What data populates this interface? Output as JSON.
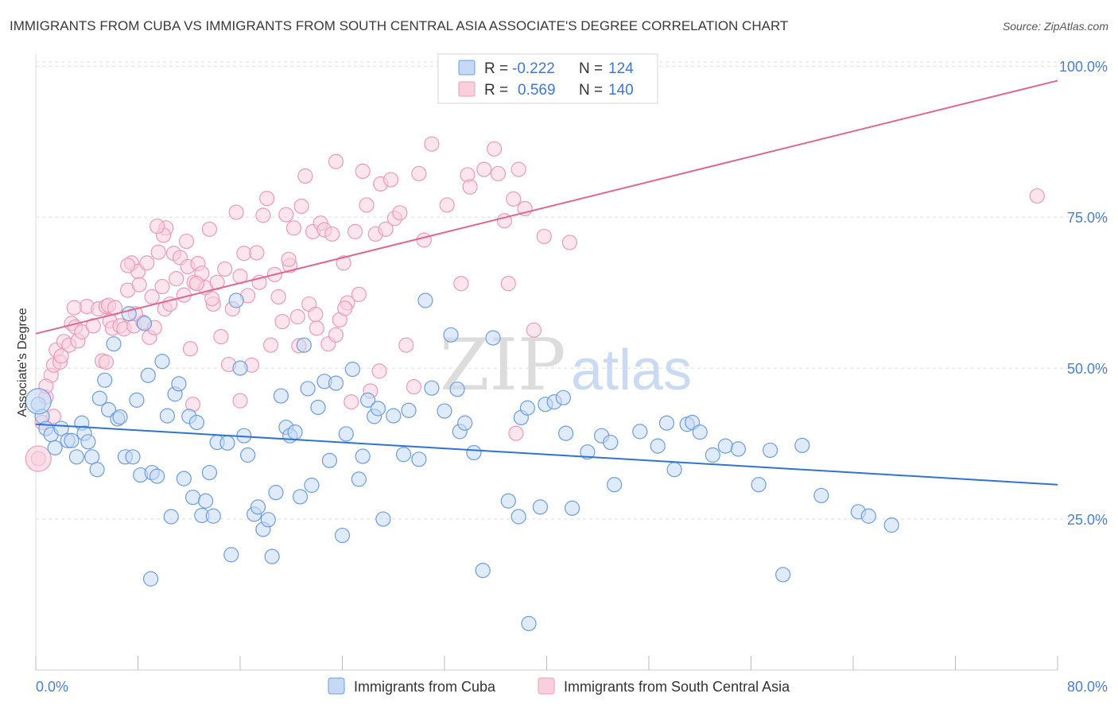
{
  "title": "IMMIGRANTS FROM CUBA VS IMMIGRANTS FROM SOUTH CENTRAL ASIA ASSOCIATE'S DEGREE CORRELATION CHART",
  "source": "Source: ZipAtlas.com",
  "watermark": {
    "zip": "ZIP",
    "atlas": "atlas"
  },
  "legend": {
    "r_label": "R =",
    "n_label": "N =",
    "rows": [
      {
        "r": "-0.222",
        "n": "124"
      },
      {
        "r": "0.569",
        "n": "140"
      }
    ]
  },
  "colors": {
    "cuba_fill": "#c5d8f5",
    "cuba_stroke": "#6c9de0",
    "cuba_line": "#2f74d0",
    "sca_fill": "#f9cfdc",
    "sca_stroke": "#ee9ab6",
    "sca_line": "#e06690",
    "tick_text": "#4a7fd0",
    "grid": "#dddddd"
  },
  "chart_data": {
    "type": "scatter",
    "title": "IMMIGRANTS FROM CUBA VS IMMIGRANTS FROM SOUTH CENTRAL ASIA ASSOCIATE'S DEGREE CORRELATION CHART",
    "xlabel": "",
    "ylabel": "Associate's Degree",
    "xlim": [
      0,
      80
    ],
    "ylim": [
      0,
      102
    ],
    "x_tick_labels": [
      "0.0%",
      "80.0%"
    ],
    "y_ticks": [
      25,
      50,
      75,
      100
    ],
    "y_tick_labels": [
      "25.0%",
      "50.0%",
      "75.0%",
      "100.0%"
    ],
    "grid": true,
    "legend_position": "top-center",
    "series": [
      {
        "name": "Immigrants from Cuba",
        "r": -0.222,
        "n": 124,
        "trend": {
          "x": [
            0,
            80
          ],
          "y": [
            40.7,
            30.7
          ]
        },
        "points": [
          [
            0.2,
            44.0
          ],
          [
            0.5,
            42.0
          ],
          [
            0.8,
            40.0
          ],
          [
            1.2,
            39.0
          ],
          [
            1.5,
            36.8
          ],
          [
            2.0,
            40.0
          ],
          [
            2.5,
            38.0
          ],
          [
            2.8,
            38.0
          ],
          [
            3.2,
            35.3
          ],
          [
            3.6,
            40.9
          ],
          [
            3.8,
            39.2
          ],
          [
            4.1,
            37.8
          ],
          [
            4.4,
            35.3
          ],
          [
            4.8,
            33.2
          ],
          [
            5.0,
            45.0
          ],
          [
            5.4,
            48.0
          ],
          [
            5.7,
            43.1
          ],
          [
            6.1,
            54.0
          ],
          [
            6.4,
            41.6
          ],
          [
            6.6,
            41.9
          ],
          [
            7.0,
            35.3
          ],
          [
            7.3,
            59.0
          ],
          [
            7.6,
            35.3
          ],
          [
            7.9,
            44.7
          ],
          [
            8.2,
            32.3
          ],
          [
            8.5,
            57.4
          ],
          [
            8.8,
            48.8
          ],
          [
            9.1,
            32.7
          ],
          [
            9.5,
            32.1
          ],
          [
            9.9,
            51.1
          ],
          [
            10.3,
            42.1
          ],
          [
            10.6,
            25.4
          ],
          [
            10.9,
            45.7
          ],
          [
            11.2,
            47.4
          ],
          [
            11.6,
            31.7
          ],
          [
            12.0,
            42.0
          ],
          [
            12.3,
            28.6
          ],
          [
            12.6,
            41.0
          ],
          [
            13.0,
            25.6
          ],
          [
            13.3,
            28.0
          ],
          [
            13.6,
            32.7
          ],
          [
            13.9,
            25.5
          ],
          [
            14.2,
            37.7
          ],
          [
            15.0,
            37.6
          ],
          [
            15.3,
            19.1
          ],
          [
            15.7,
            61.2
          ],
          [
            16.0,
            50.0
          ],
          [
            16.3,
            38.8
          ],
          [
            16.6,
            35.6
          ],
          [
            17.1,
            25.8
          ],
          [
            17.4,
            27.0
          ],
          [
            17.8,
            23.3
          ],
          [
            18.2,
            24.9
          ],
          [
            18.5,
            18.8
          ],
          [
            18.8,
            29.4
          ],
          [
            19.2,
            45.4
          ],
          [
            19.6,
            40.2
          ],
          [
            19.9,
            38.8
          ],
          [
            20.3,
            39.4
          ],
          [
            20.7,
            28.7
          ],
          [
            21.0,
            53.8
          ],
          [
            21.3,
            46.6
          ],
          [
            21.6,
            30.6
          ],
          [
            22.1,
            43.5
          ],
          [
            22.6,
            47.8
          ],
          [
            23.0,
            34.7
          ],
          [
            23.5,
            47.5
          ],
          [
            24.0,
            22.3
          ],
          [
            24.3,
            39.1
          ],
          [
            24.8,
            49.8
          ],
          [
            25.3,
            31.6
          ],
          [
            25.6,
            35.4
          ],
          [
            26.0,
            44.7
          ],
          [
            26.5,
            42.0
          ],
          [
            27.2,
            25.0
          ],
          [
            28.0,
            42.1
          ],
          [
            28.8,
            35.7
          ],
          [
            29.2,
            43.0
          ],
          [
            30.0,
            34.9
          ],
          [
            30.5,
            61.2
          ],
          [
            31.0,
            46.7
          ],
          [
            32.0,
            42.9
          ],
          [
            32.5,
            55.5
          ],
          [
            33.0,
            46.5
          ],
          [
            33.2,
            39.5
          ],
          [
            33.6,
            40.9
          ],
          [
            34.3,
            36.0
          ],
          [
            35.0,
            16.5
          ],
          [
            35.8,
            55.0
          ],
          [
            37.0,
            28.0
          ],
          [
            37.8,
            25.4
          ],
          [
            38.0,
            41.8
          ],
          [
            38.5,
            43.4
          ],
          [
            39.5,
            27.0
          ],
          [
            39.9,
            44.0
          ],
          [
            40.6,
            44.4
          ],
          [
            41.3,
            45.1
          ],
          [
            41.5,
            39.2
          ],
          [
            42.0,
            26.8
          ],
          [
            43.2,
            36.1
          ],
          [
            44.3,
            38.8
          ],
          [
            45.0,
            37.7
          ],
          [
            45.3,
            30.7
          ],
          [
            47.3,
            39.5
          ],
          [
            48.7,
            37.1
          ],
          [
            49.4,
            40.9
          ],
          [
            50.0,
            33.2
          ],
          [
            51.0,
            40.7
          ],
          [
            51.4,
            41.0
          ],
          [
            52.0,
            39.4
          ],
          [
            53.0,
            35.6
          ],
          [
            54.0,
            37.1
          ],
          [
            55.0,
            36.6
          ],
          [
            56.6,
            30.7
          ],
          [
            57.5,
            36.4
          ],
          [
            58.5,
            15.8
          ],
          [
            60.0,
            37.2
          ],
          [
            61.5,
            28.9
          ],
          [
            64.4,
            26.2
          ],
          [
            65.2,
            25.5
          ],
          [
            67.0,
            24.0
          ],
          [
            38.6,
            7.7
          ],
          [
            9.0,
            15.1
          ],
          [
            26.8,
            43.3
          ]
        ]
      },
      {
        "name": "Immigrants from South Central Asia",
        "r": 0.569,
        "n": 140,
        "trend": {
          "x": [
            0,
            80
          ],
          "y": [
            55.7,
            97.6
          ]
        },
        "points": [
          [
            0.2,
            35.0
          ],
          [
            0.5,
            41.0
          ],
          [
            0.8,
            45.2
          ],
          [
            1.2,
            48.8
          ],
          [
            1.4,
            50.5
          ],
          [
            1.6,
            53.0
          ],
          [
            1.9,
            51.0
          ],
          [
            2.2,
            54.4
          ],
          [
            2.6,
            53.8
          ],
          [
            2.8,
            57.4
          ],
          [
            3.1,
            56.8
          ],
          [
            3.3,
            54.5
          ],
          [
            3.6,
            56.0
          ],
          [
            4.0,
            60.2
          ],
          [
            4.5,
            57.0
          ],
          [
            4.9,
            59.8
          ],
          [
            5.2,
            51.2
          ],
          [
            5.5,
            60.2
          ],
          [
            5.7,
            60.4
          ],
          [
            5.8,
            57.8
          ],
          [
            6.0,
            56.6
          ],
          [
            6.2,
            60.0
          ],
          [
            6.6,
            57.0
          ],
          [
            6.9,
            56.5
          ],
          [
            7.2,
            62.9
          ],
          [
            7.5,
            67.4
          ],
          [
            7.7,
            57.0
          ],
          [
            8.0,
            66.0
          ],
          [
            8.1,
            63.8
          ],
          [
            8.4,
            57.6
          ],
          [
            8.7,
            67.4
          ],
          [
            8.9,
            55.1
          ],
          [
            9.1,
            61.8
          ],
          [
            9.3,
            56.7
          ],
          [
            9.6,
            69.2
          ],
          [
            9.9,
            63.5
          ],
          [
            10.1,
            59.8
          ],
          [
            10.2,
            73.2
          ],
          [
            10.5,
            60.6
          ],
          [
            10.8,
            69.0
          ],
          [
            11.0,
            64.8
          ],
          [
            11.3,
            68.3
          ],
          [
            11.6,
            62.1
          ],
          [
            11.9,
            66.8
          ],
          [
            12.1,
            53.2
          ],
          [
            12.4,
            64.2
          ],
          [
            12.7,
            67.3
          ],
          [
            13.0,
            65.7
          ],
          [
            13.3,
            63.3
          ],
          [
            13.6,
            73.0
          ],
          [
            13.9,
            60.6
          ],
          [
            14.2,
            64.2
          ],
          [
            14.5,
            55.2
          ],
          [
            14.8,
            66.4
          ],
          [
            15.1,
            50.6
          ],
          [
            15.4,
            59.8
          ],
          [
            15.7,
            75.8
          ],
          [
            16.0,
            65.2
          ],
          [
            16.3,
            69.0
          ],
          [
            16.6,
            62.0
          ],
          [
            16.9,
            50.5
          ],
          [
            17.3,
            69.1
          ],
          [
            17.5,
            64.2
          ],
          [
            17.8,
            75.3
          ],
          [
            18.1,
            78.1
          ],
          [
            18.4,
            53.8
          ],
          [
            18.7,
            65.5
          ],
          [
            19.0,
            61.8
          ],
          [
            19.3,
            57.7
          ],
          [
            19.6,
            75.4
          ],
          [
            19.9,
            67.0
          ],
          [
            20.2,
            73.2
          ],
          [
            20.5,
            58.5
          ],
          [
            20.8,
            76.8
          ],
          [
            21.1,
            81.8
          ],
          [
            21.4,
            60.6
          ],
          [
            21.7,
            72.6
          ],
          [
            22.0,
            56.6
          ],
          [
            22.3,
            74.0
          ],
          [
            22.6,
            72.9
          ],
          [
            22.9,
            54.0
          ],
          [
            23.2,
            72.2
          ],
          [
            23.5,
            84.2
          ],
          [
            23.8,
            58.0
          ],
          [
            24.1,
            67.4
          ],
          [
            24.4,
            60.8
          ],
          [
            24.7,
            44.4
          ],
          [
            25.0,
            72.6
          ],
          [
            25.3,
            62.2
          ],
          [
            25.6,
            82.6
          ],
          [
            25.9,
            77.0
          ],
          [
            26.2,
            46.2
          ],
          [
            26.6,
            72.2
          ],
          [
            27.0,
            80.5
          ],
          [
            27.4,
            73.0
          ],
          [
            27.8,
            81.2
          ],
          [
            28.1,
            74.8
          ],
          [
            28.5,
            75.7
          ],
          [
            29.0,
            53.8
          ],
          [
            29.6,
            46.9
          ],
          [
            30.0,
            82.2
          ],
          [
            30.4,
            71.2
          ],
          [
            31.0,
            87.1
          ],
          [
            32.2,
            77.0
          ],
          [
            33.3,
            64.0
          ],
          [
            33.8,
            82.0
          ],
          [
            34.0,
            80.0
          ],
          [
            35.1,
            82.9
          ],
          [
            35.9,
            86.3
          ],
          [
            36.2,
            82.2
          ],
          [
            36.7,
            74.4
          ],
          [
            37.0,
            64.0
          ],
          [
            37.4,
            78.0
          ],
          [
            37.8,
            82.9
          ],
          [
            38.3,
            76.4
          ],
          [
            39.0,
            56.3
          ],
          [
            39.8,
            71.8
          ],
          [
            41.8,
            70.8
          ],
          [
            23.5,
            55.5
          ],
          [
            20.6,
            53.7
          ],
          [
            5.5,
            51.0
          ],
          [
            3.0,
            60.0
          ],
          [
            2.0,
            52.0
          ],
          [
            11.8,
            71.0
          ],
          [
            7.8,
            59.0
          ],
          [
            10.0,
            72.0
          ],
          [
            12.6,
            64.0
          ],
          [
            0.8,
            47.0
          ],
          [
            13.8,
            61.5
          ],
          [
            16.0,
            44.6
          ],
          [
            19.8,
            68.0
          ],
          [
            21.9,
            58.9
          ],
          [
            24.2,
            59.9
          ],
          [
            1.4,
            42.0
          ],
          [
            26.9,
            49.5
          ],
          [
            37.6,
            39.2
          ],
          [
            9.5,
            73.5
          ],
          [
            7.2,
            67.0
          ],
          [
            12.3,
            44.0
          ],
          [
            78.4,
            78.5
          ]
        ]
      }
    ]
  },
  "bottom_legend": [
    {
      "label": "Immigrants from Cuba"
    },
    {
      "label": "Immigrants from South Central Asia"
    }
  ]
}
